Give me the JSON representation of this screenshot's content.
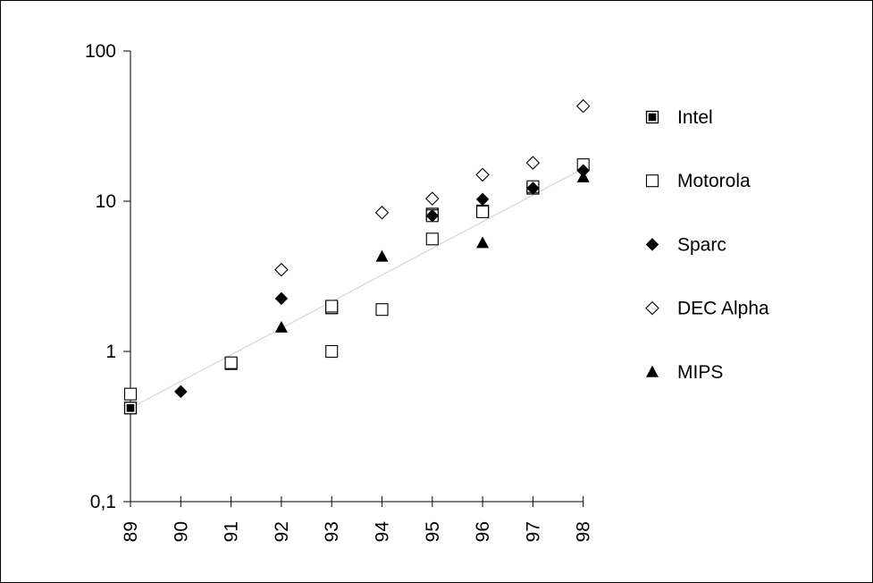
{
  "chart_data": {
    "type": "scatter",
    "title": "",
    "xlabel": "",
    "ylabel": "",
    "x_categories": [
      "89",
      "90",
      "91",
      "92",
      "93",
      "94",
      "95",
      "96",
      "97",
      "98"
    ],
    "y_scale": "log",
    "ylim": [
      0.1,
      100
    ],
    "y_tick_labels": [
      "0,1",
      "1",
      "10",
      "100"
    ],
    "y_tick_values": [
      0.1,
      1,
      10,
      100
    ],
    "grid": false,
    "legend_position": "right",
    "trendline": {
      "from": {
        "x": "89",
        "y": 0.42
      },
      "to": {
        "x": "98",
        "y": 16.5
      },
      "color": "#d8d8d8"
    },
    "series": [
      {
        "name": "Intel",
        "marker": "filled-square",
        "color": "#000000",
        "points": [
          {
            "x": "89",
            "y": 0.42
          },
          {
            "x": "91",
            "y": 0.83
          },
          {
            "x": "93",
            "y": 1.95
          },
          {
            "x": "95",
            "y": 8.2
          },
          {
            "x": "96",
            "y": 8.6
          },
          {
            "x": "97",
            "y": 12.2
          }
        ]
      },
      {
        "name": "Motorola",
        "marker": "open-square",
        "color": "#000000",
        "points": [
          {
            "x": "89",
            "y": 0.52
          },
          {
            "x": "91",
            "y": 0.84
          },
          {
            "x": "93",
            "y": 2.0
          },
          {
            "x": "93",
            "y": 1.0
          },
          {
            "x": "94",
            "y": 1.9
          },
          {
            "x": "95",
            "y": 5.6
          },
          {
            "x": "95",
            "y": 8.0
          },
          {
            "x": "96",
            "y": 8.5
          },
          {
            "x": "97",
            "y": 12.5
          },
          {
            "x": "98",
            "y": 17.5
          }
        ]
      },
      {
        "name": "Sparc",
        "marker": "filled-diamond",
        "color": "#000000",
        "points": [
          {
            "x": "90",
            "y": 0.54
          },
          {
            "x": "92",
            "y": 2.25
          },
          {
            "x": "95",
            "y": 8.0
          },
          {
            "x": "96",
            "y": 10.3
          },
          {
            "x": "97",
            "y": 12.2
          },
          {
            "x": "98",
            "y": 16.0
          }
        ]
      },
      {
        "name": "DEC Alpha",
        "marker": "open-diamond",
        "color": "#000000",
        "points": [
          {
            "x": "92",
            "y": 3.5
          },
          {
            "x": "94",
            "y": 8.4
          },
          {
            "x": "95",
            "y": 10.4
          },
          {
            "x": "96",
            "y": 15.0
          },
          {
            "x": "97",
            "y": 18.0
          },
          {
            "x": "98",
            "y": 43.0
          }
        ]
      },
      {
        "name": "MIPS",
        "marker": "filled-triangle",
        "color": "#000000",
        "points": [
          {
            "x": "92",
            "y": 1.45
          },
          {
            "x": "94",
            "y": 4.3
          },
          {
            "x": "96",
            "y": 5.3
          },
          {
            "x": "98",
            "y": 14.5
          }
        ]
      }
    ]
  }
}
